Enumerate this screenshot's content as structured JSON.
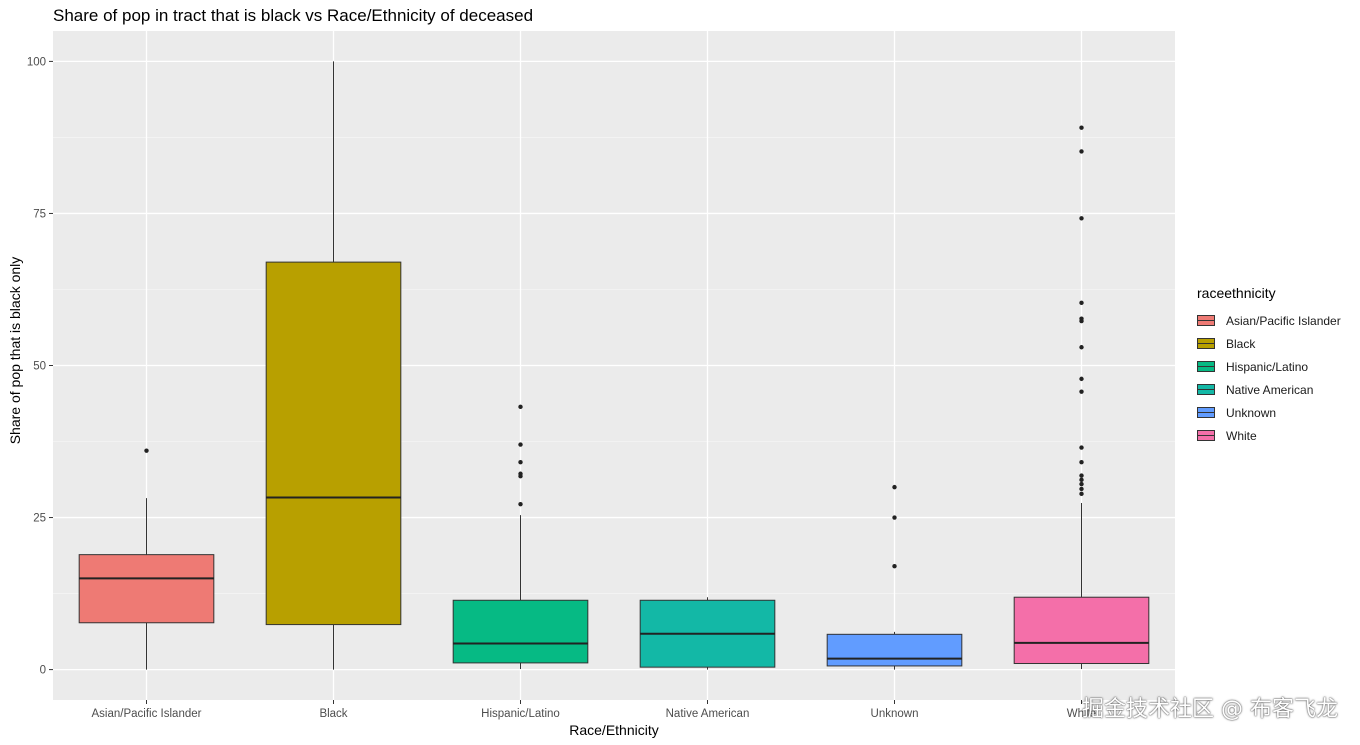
{
  "chart_data": {
    "type": "boxplot",
    "title": "Share of pop in tract that is black vs Race/Ethnicity of deceased",
    "xlabel": "Race/Ethnicity",
    "ylabel": "Share of pop that is black only",
    "ylim": [
      -5,
      105
    ],
    "yticks": [
      "0",
      "25",
      "50",
      "75",
      "100"
    ],
    "ytick_values": [
      0,
      25,
      50,
      75,
      100
    ],
    "grid": true,
    "legend": {
      "title": "raceethnicity",
      "position": "right",
      "entries": [
        "Asian/Pacific Islander",
        "Black",
        "Hispanic/Latino",
        "Native American",
        "Unknown",
        "White"
      ]
    },
    "categories": [
      "Asian/Pacific Islander",
      "Black",
      "Hispanic/Latino",
      "Native American",
      "Unknown",
      "White"
    ],
    "colors": [
      "#F8766D",
      "#B79F00",
      "#00BA38",
      "#00BFC4",
      "#619CFF",
      "#F564E3"
    ],
    "fill_colors": [
      "#EE7A74",
      "#B8A000",
      "#06BA84",
      "#13B8A6",
      "#619CFF",
      "#F46FA9"
    ],
    "boxes": [
      {
        "category": "Asian/Pacific Islander",
        "min": 0,
        "q1": 7.7,
        "median": 15,
        "q3": 18.9,
        "max": 28.2,
        "outliers": [
          36
        ]
      },
      {
        "category": "Black",
        "min": 0,
        "q1": 7.4,
        "median": 28.3,
        "q3": 67,
        "max": 100,
        "outliers": []
      },
      {
        "category": "Hispanic/Latino",
        "min": 0.1,
        "q1": 1.1,
        "median": 4.3,
        "q3": 11.4,
        "max": 25.4,
        "outliers": [
          27.2,
          31.8,
          32.2,
          34.1,
          37,
          43.2
        ]
      },
      {
        "category": "Native American",
        "min": 0,
        "q1": 0.4,
        "median": 5.9,
        "q3": 11.4,
        "max": 11.9,
        "outliers": []
      },
      {
        "category": "Unknown",
        "min": 0,
        "q1": 0.6,
        "median": 1.8,
        "q3": 5.8,
        "max": 6.2,
        "outliers": [
          17,
          25,
          30
        ]
      },
      {
        "category": "White",
        "min": 0.1,
        "q1": 1.0,
        "median": 4.4,
        "q3": 11.9,
        "max": 27.4,
        "outliers": [
          28.9,
          29.7,
          30.5,
          31.2,
          31.9,
          34.1,
          36.5,
          45.7,
          47.8,
          53,
          57.3,
          57.7,
          60.3,
          74.2,
          85.2,
          89.1
        ]
      }
    ]
  },
  "watermark": "掘金技术社区 @ 布客飞龙"
}
